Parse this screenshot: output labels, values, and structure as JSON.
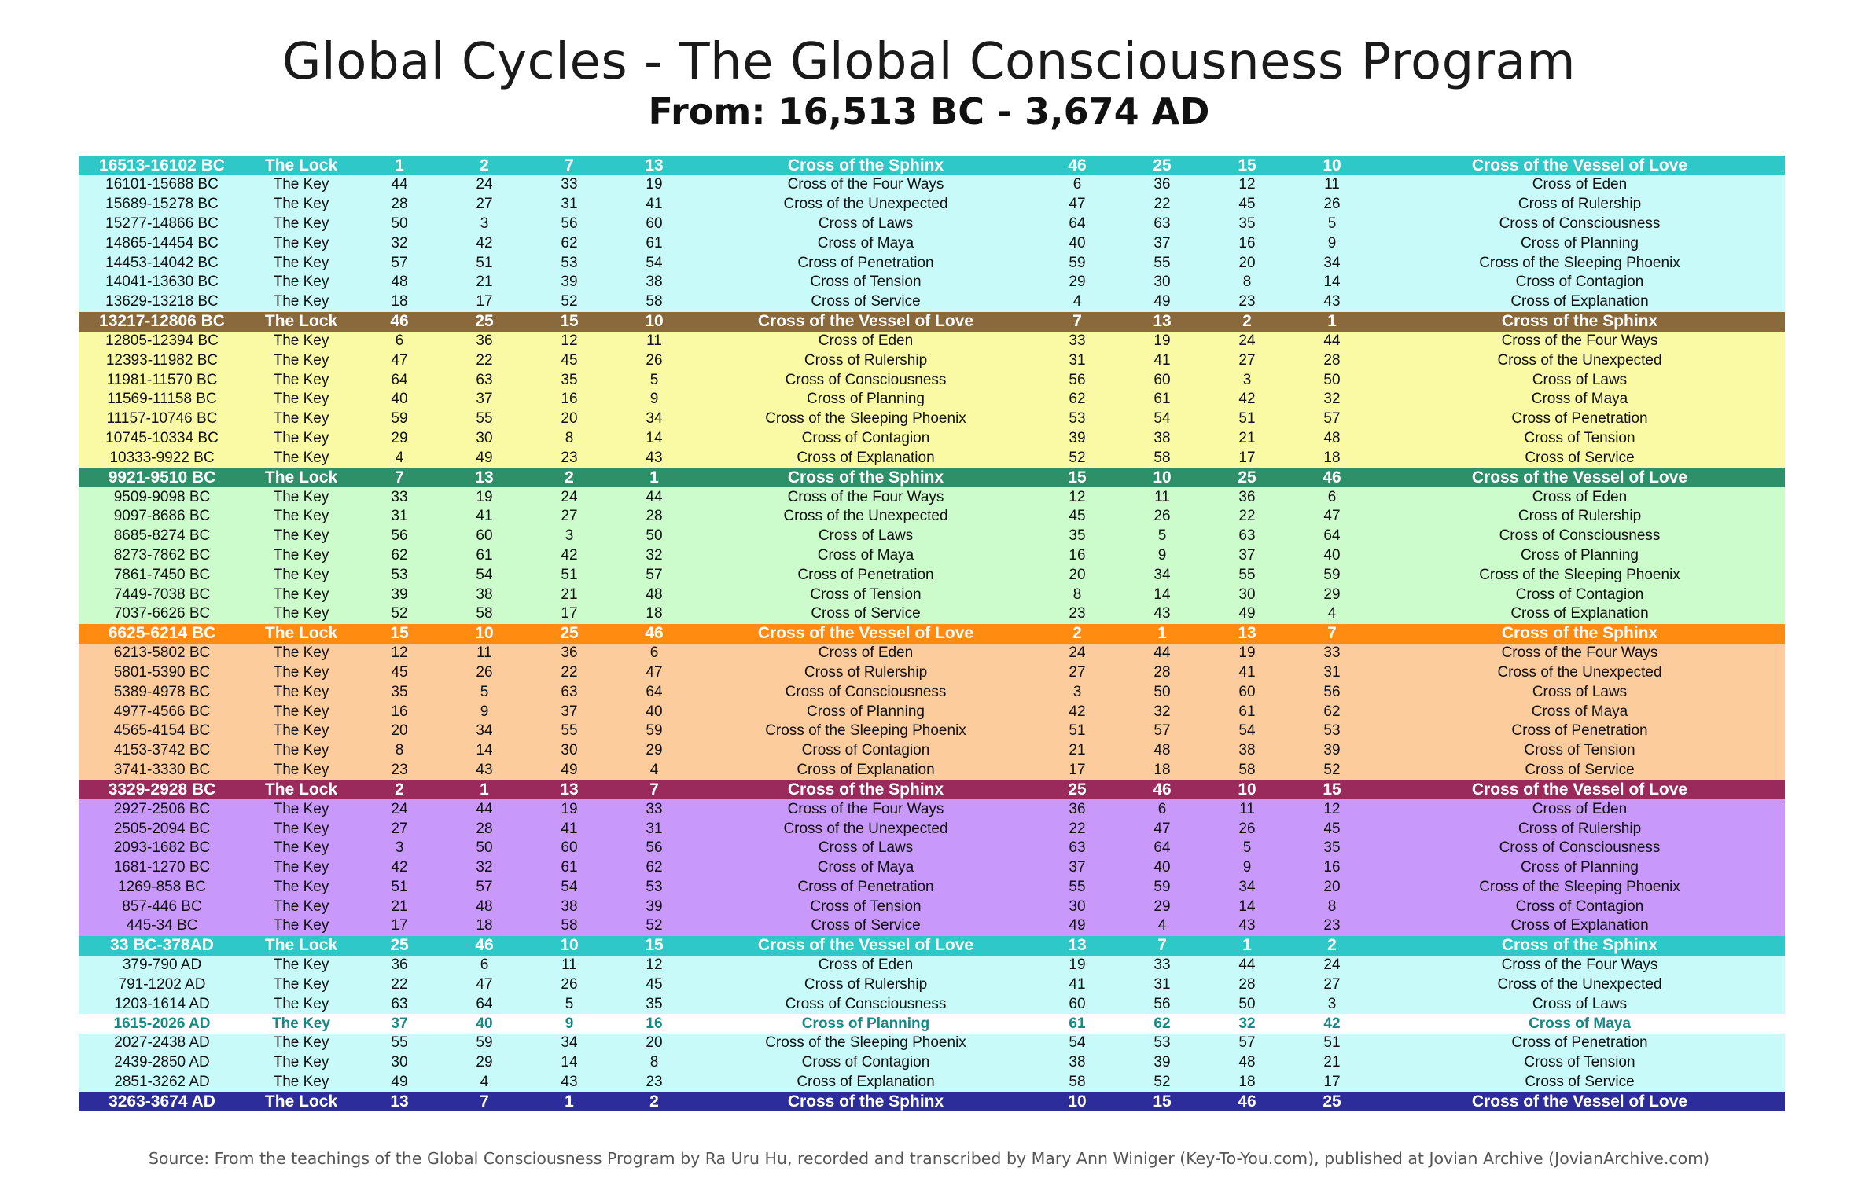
{
  "header": {
    "title": "Global Cycles - The Global Consciousness Program",
    "subtitle": "From: 16,513 BC - 3,674 AD"
  },
  "colors": {
    "cyan_header": "#2ec8c8",
    "cyan_band": "#c8fafa",
    "brown_header": "#8a6a3c",
    "yellow_band": "#fafaa4",
    "green_header": "#2e9068",
    "green_band": "#ccfccc",
    "orange_header": "#ff8c10",
    "orange_band": "#fccc9c",
    "maroon_header": "#9a2a5c",
    "purple_band": "#c898fa",
    "navy_header": "#2c2c9a",
    "current_text": "#138a85"
  },
  "table": {
    "rows": [
      {
        "type": "lock",
        "header_color": "#2ec8c8",
        "cells": [
          "16513-16102 BC",
          "The Lock",
          "1",
          "2",
          "7",
          "13",
          "Cross of the Sphinx",
          "46",
          "25",
          "15",
          "10",
          "Cross of the Vessel of Love"
        ]
      },
      {
        "type": "key",
        "band_color": "#c8fafa",
        "cells": [
          "16101-15688 BC",
          "The Key",
          "44",
          "24",
          "33",
          "19",
          "Cross of the Four Ways",
          "6",
          "36",
          "12",
          "11",
          "Cross of Eden"
        ]
      },
      {
        "type": "key",
        "band_color": "#c8fafa",
        "cells": [
          "15689-15278 BC",
          "The Key",
          "28",
          "27",
          "31",
          "41",
          "Cross of the Unexpected",
          "47",
          "22",
          "45",
          "26",
          "Cross of Rulership"
        ]
      },
      {
        "type": "key",
        "band_color": "#c8fafa",
        "cells": [
          "15277-14866 BC",
          "The Key",
          "50",
          "3",
          "56",
          "60",
          "Cross of Laws",
          "64",
          "63",
          "35",
          "5",
          "Cross of Consciousness"
        ]
      },
      {
        "type": "key",
        "band_color": "#c8fafa",
        "cells": [
          "14865-14454 BC",
          "The Key",
          "32",
          "42",
          "62",
          "61",
          "Cross of Maya",
          "40",
          "37",
          "16",
          "9",
          "Cross of Planning"
        ]
      },
      {
        "type": "key",
        "band_color": "#c8fafa",
        "cells": [
          "14453-14042 BC",
          "The Key",
          "57",
          "51",
          "53",
          "54",
          "Cross of Penetration",
          "59",
          "55",
          "20",
          "34",
          "Cross of the Sleeping Phoenix"
        ]
      },
      {
        "type": "key",
        "band_color": "#c8fafa",
        "cells": [
          "14041-13630 BC",
          "The Key",
          "48",
          "21",
          "39",
          "38",
          "Cross of Tension",
          "29",
          "30",
          "8",
          "14",
          "Cross of Contagion"
        ]
      },
      {
        "type": "key",
        "band_color": "#c8fafa",
        "cells": [
          "13629-13218 BC",
          "The Key",
          "18",
          "17",
          "52",
          "58",
          "Cross of Service",
          "4",
          "49",
          "23",
          "43",
          "Cross of Explanation"
        ]
      },
      {
        "type": "lock",
        "header_color": "#8a6a3c",
        "cells": [
          "13217-12806 BC",
          "The Lock",
          "46",
          "25",
          "15",
          "10",
          "Cross of the Vessel of Love",
          "7",
          "13",
          "2",
          "1",
          "Cross of the Sphinx"
        ]
      },
      {
        "type": "key",
        "band_color": "#fafaa4",
        "cells": [
          "12805-12394 BC",
          "The Key",
          "6",
          "36",
          "12",
          "11",
          "Cross of Eden",
          "33",
          "19",
          "24",
          "44",
          "Cross of the Four Ways"
        ]
      },
      {
        "type": "key",
        "band_color": "#fafaa4",
        "cells": [
          "12393-11982 BC",
          "The Key",
          "47",
          "22",
          "45",
          "26",
          "Cross of Rulership",
          "31",
          "41",
          "27",
          "28",
          "Cross of the Unexpected"
        ]
      },
      {
        "type": "key",
        "band_color": "#fafaa4",
        "cells": [
          "11981-11570 BC",
          "The Key",
          "64",
          "63",
          "35",
          "5",
          "Cross of Consciousness",
          "56",
          "60",
          "3",
          "50",
          "Cross of Laws"
        ]
      },
      {
        "type": "key",
        "band_color": "#fafaa4",
        "cells": [
          "11569-11158 BC",
          "The Key",
          "40",
          "37",
          "16",
          "9",
          "Cross of Planning",
          "62",
          "61",
          "42",
          "32",
          "Cross of Maya"
        ]
      },
      {
        "type": "key",
        "band_color": "#fafaa4",
        "cells": [
          "11157-10746 BC",
          "The Key",
          "59",
          "55",
          "20",
          "34",
          "Cross of the Sleeping Phoenix",
          "53",
          "54",
          "51",
          "57",
          "Cross of Penetration"
        ]
      },
      {
        "type": "key",
        "band_color": "#fafaa4",
        "cells": [
          "10745-10334 BC",
          "The Key",
          "29",
          "30",
          "8",
          "14",
          "Cross of Contagion",
          "39",
          "38",
          "21",
          "48",
          "Cross of Tension"
        ]
      },
      {
        "type": "key",
        "band_color": "#fafaa4",
        "cells": [
          "10333-9922 BC",
          "The Key",
          "4",
          "49",
          "23",
          "43",
          "Cross of Explanation",
          "52",
          "58",
          "17",
          "18",
          "Cross of Service"
        ]
      },
      {
        "type": "lock",
        "header_color": "#2e9068",
        "cells": [
          "9921-9510 BC",
          "The Lock",
          "7",
          "13",
          "2",
          "1",
          "Cross of the Sphinx",
          "15",
          "10",
          "25",
          "46",
          "Cross of the Vessel of Love"
        ]
      },
      {
        "type": "key",
        "band_color": "#ccfccc",
        "cells": [
          "9509-9098 BC",
          "The Key",
          "33",
          "19",
          "24",
          "44",
          "Cross of the Four Ways",
          "12",
          "11",
          "36",
          "6",
          "Cross of Eden"
        ]
      },
      {
        "type": "key",
        "band_color": "#ccfccc",
        "cells": [
          "9097-8686 BC",
          "The Key",
          "31",
          "41",
          "27",
          "28",
          "Cross of the Unexpected",
          "45",
          "26",
          "22",
          "47",
          "Cross of Rulership"
        ]
      },
      {
        "type": "key",
        "band_color": "#ccfccc",
        "cells": [
          "8685-8274 BC",
          "The Key",
          "56",
          "60",
          "3",
          "50",
          "Cross of Laws",
          "35",
          "5",
          "63",
          "64",
          "Cross of Consciousness"
        ]
      },
      {
        "type": "key",
        "band_color": "#ccfccc",
        "cells": [
          "8273-7862 BC",
          "The Key",
          "62",
          "61",
          "42",
          "32",
          "Cross of Maya",
          "16",
          "9",
          "37",
          "40",
          "Cross of Planning"
        ]
      },
      {
        "type": "key",
        "band_color": "#ccfccc",
        "cells": [
          "7861-7450 BC",
          "The Key",
          "53",
          "54",
          "51",
          "57",
          "Cross of Penetration",
          "20",
          "34",
          "55",
          "59",
          "Cross of the Sleeping Phoenix"
        ]
      },
      {
        "type": "key",
        "band_color": "#ccfccc",
        "cells": [
          "7449-7038 BC",
          "The Key",
          "39",
          "38",
          "21",
          "48",
          "Cross of Tension",
          "8",
          "14",
          "30",
          "29",
          "Cross of Contagion"
        ]
      },
      {
        "type": "key",
        "band_color": "#ccfccc",
        "cells": [
          "7037-6626 BC",
          "The Key",
          "52",
          "58",
          "17",
          "18",
          "Cross of Service",
          "23",
          "43",
          "49",
          "4",
          "Cross of Explanation"
        ]
      },
      {
        "type": "lock",
        "header_color": "#ff8c10",
        "cells": [
          "6625-6214 BC",
          "The Lock",
          "15",
          "10",
          "25",
          "46",
          "Cross of the Vessel of Love",
          "2",
          "1",
          "13",
          "7",
          "Cross of the Sphinx"
        ]
      },
      {
        "type": "key",
        "band_color": "#fccc9c",
        "cells": [
          "6213-5802 BC",
          "The Key",
          "12",
          "11",
          "36",
          "6",
          "Cross of Eden",
          "24",
          "44",
          "19",
          "33",
          "Cross of the Four Ways"
        ]
      },
      {
        "type": "key",
        "band_color": "#fccc9c",
        "cells": [
          "5801-5390 BC",
          "The Key",
          "45",
          "26",
          "22",
          "47",
          "Cross of Rulership",
          "27",
          "28",
          "41",
          "31",
          "Cross of the Unexpected"
        ]
      },
      {
        "type": "key",
        "band_color": "#fccc9c",
        "cells": [
          "5389-4978 BC",
          "The Key",
          "35",
          "5",
          "63",
          "64",
          "Cross of Consciousness",
          "3",
          "50",
          "60",
          "56",
          "Cross of Laws"
        ]
      },
      {
        "type": "key",
        "band_color": "#fccc9c",
        "cells": [
          "4977-4566 BC",
          "The Key",
          "16",
          "9",
          "37",
          "40",
          "Cross of Planning",
          "42",
          "32",
          "61",
          "62",
          "Cross of Maya"
        ]
      },
      {
        "type": "key",
        "band_color": "#fccc9c",
        "cells": [
          "4565-4154 BC",
          "The Key",
          "20",
          "34",
          "55",
          "59",
          "Cross of the Sleeping Phoenix",
          "51",
          "57",
          "54",
          "53",
          "Cross of Penetration"
        ]
      },
      {
        "type": "key",
        "band_color": "#fccc9c",
        "cells": [
          "4153-3742 BC",
          "The Key",
          "8",
          "14",
          "30",
          "29",
          "Cross of Contagion",
          "21",
          "48",
          "38",
          "39",
          "Cross of Tension"
        ]
      },
      {
        "type": "key",
        "band_color": "#fccc9c",
        "cells": [
          "3741-3330 BC",
          "The Key",
          "23",
          "43",
          "49",
          "4",
          "Cross of Explanation",
          "17",
          "18",
          "58",
          "52",
          "Cross of Service"
        ]
      },
      {
        "type": "lock",
        "header_color": "#9a2a5c",
        "cells": [
          "3329-2928 BC",
          "The Lock",
          "2",
          "1",
          "13",
          "7",
          "Cross of the Sphinx",
          "25",
          "46",
          "10",
          "15",
          "Cross of the Vessel of Love"
        ]
      },
      {
        "type": "key",
        "band_color": "#c898fa",
        "cells": [
          "2927-2506 BC",
          "The Key",
          "24",
          "44",
          "19",
          "33",
          "Cross of the Four Ways",
          "36",
          "6",
          "11",
          "12",
          "Cross of Eden"
        ]
      },
      {
        "type": "key",
        "band_color": "#c898fa",
        "cells": [
          "2505-2094 BC",
          "The Key",
          "27",
          "28",
          "41",
          "31",
          "Cross of the Unexpected",
          "22",
          "47",
          "26",
          "45",
          "Cross of Rulership"
        ]
      },
      {
        "type": "key",
        "band_color": "#c898fa",
        "cells": [
          "2093-1682 BC",
          "The Key",
          "3",
          "50",
          "60",
          "56",
          "Cross of Laws",
          "63",
          "64",
          "5",
          "35",
          "Cross of Consciousness"
        ]
      },
      {
        "type": "key",
        "band_color": "#c898fa",
        "cells": [
          "1681-1270 BC",
          "The Key",
          "42",
          "32",
          "61",
          "62",
          "Cross of Maya",
          "37",
          "40",
          "9",
          "16",
          "Cross of Planning"
        ]
      },
      {
        "type": "key",
        "band_color": "#c898fa",
        "cells": [
          "1269-858 BC",
          "The Key",
          "51",
          "57",
          "54",
          "53",
          "Cross of Penetration",
          "55",
          "59",
          "34",
          "20",
          "Cross of the Sleeping Phoenix"
        ]
      },
      {
        "type": "key",
        "band_color": "#c898fa",
        "cells": [
          "857-446 BC",
          "The Key",
          "21",
          "48",
          "38",
          "39",
          "Cross of Tension",
          "30",
          "29",
          "14",
          "8",
          "Cross of Contagion"
        ]
      },
      {
        "type": "key",
        "band_color": "#c898fa",
        "cells": [
          "445-34 BC",
          "The Key",
          "17",
          "18",
          "58",
          "52",
          "Cross of Service",
          "49",
          "4",
          "43",
          "23",
          "Cross of Explanation"
        ]
      },
      {
        "type": "lock",
        "header_color": "#2ec8c8",
        "cells": [
          "33 BC-378AD",
          "The Lock",
          "25",
          "46",
          "10",
          "15",
          "Cross of the Vessel of Love",
          "13",
          "7",
          "1",
          "2",
          "Cross of the Sphinx"
        ]
      },
      {
        "type": "key",
        "band_color": "#c8fafa",
        "cells": [
          "379-790 AD",
          "The Key",
          "36",
          "6",
          "11",
          "12",
          "Cross of Eden",
          "19",
          "33",
          "44",
          "24",
          "Cross of the Four Ways"
        ]
      },
      {
        "type": "key",
        "band_color": "#c8fafa",
        "cells": [
          "791-1202 AD",
          "The Key",
          "22",
          "47",
          "26",
          "45",
          "Cross of Rulership",
          "41",
          "31",
          "28",
          "27",
          "Cross of the Unexpected"
        ]
      },
      {
        "type": "key",
        "band_color": "#c8fafa",
        "cells": [
          "1203-1614 AD",
          "The Key",
          "63",
          "64",
          "5",
          "35",
          "Cross of Consciousness",
          "60",
          "56",
          "50",
          "3",
          "Cross of Laws"
        ]
      },
      {
        "type": "current",
        "band_color": "#ffffff",
        "cells": [
          "1615-2026 AD",
          "The Key",
          "37",
          "40",
          "9",
          "16",
          "Cross of Planning",
          "61",
          "62",
          "32",
          "42",
          "Cross of Maya"
        ]
      },
      {
        "type": "key",
        "band_color": "#c8fafa",
        "cells": [
          "2027-2438 AD",
          "The Key",
          "55",
          "59",
          "34",
          "20",
          "Cross of the Sleeping Phoenix",
          "54",
          "53",
          "57",
          "51",
          "Cross of Penetration"
        ]
      },
      {
        "type": "key",
        "band_color": "#c8fafa",
        "cells": [
          "2439-2850 AD",
          "The Key",
          "30",
          "29",
          "14",
          "8",
          "Cross of Contagion",
          "38",
          "39",
          "48",
          "21",
          "Cross of Tension"
        ]
      },
      {
        "type": "key",
        "band_color": "#c8fafa",
        "cells": [
          "2851-3262 AD",
          "The Key",
          "49",
          "4",
          "43",
          "23",
          "Cross of Explanation",
          "58",
          "52",
          "18",
          "17",
          "Cross of Service"
        ]
      },
      {
        "type": "lock",
        "header_color": "#2c2c9a",
        "cells": [
          "3263-3674 AD",
          "The Lock",
          "13",
          "7",
          "1",
          "2",
          "Cross of the Sphinx",
          "10",
          "15",
          "46",
          "25",
          "Cross of the Vessel of Love"
        ]
      }
    ]
  },
  "footer": {
    "source": "Source: From the teachings of the Global Consciousness Program by Ra Uru Hu, recorded and transcribed by Mary Ann Winiger (Key-To-You.com), published at Jovian Archive (JovianArchive.com)"
  }
}
